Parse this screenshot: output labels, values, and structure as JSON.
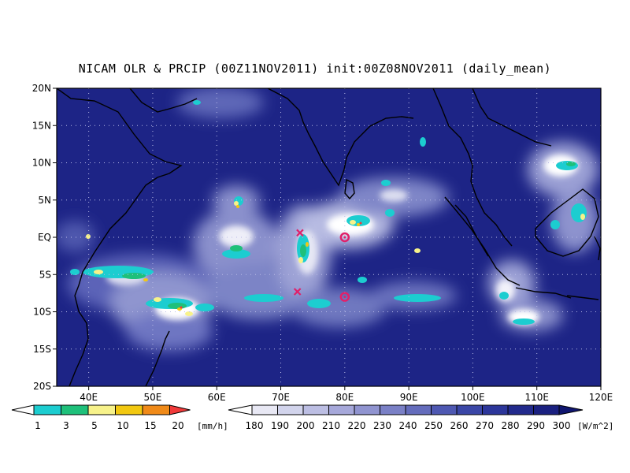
{
  "title": "NICAM OLR & PRCIP (00Z11NOV2011) init:00Z08NOV2011 (daily_mean)",
  "map": {
    "lon_range": [
      35,
      120
    ],
    "lat_range": [
      -20,
      20
    ],
    "lon_ticks": [
      "40E",
      "50E",
      "60E",
      "70E",
      "80E",
      "90E",
      "100E",
      "110E",
      "120E"
    ],
    "lat_ticks": [
      "20N",
      "15N",
      "10N",
      "5N",
      "EQ",
      "5S",
      "10S",
      "15S",
      "20S"
    ],
    "background_color": "#1d2486",
    "grid": "dotted",
    "markers": [
      {
        "type": "cross",
        "lon": 73.0,
        "lat": 0.6,
        "color": "#e0206a"
      },
      {
        "type": "cross",
        "lon": 72.6,
        "lat": -7.3,
        "color": "#e0206a"
      },
      {
        "type": "circle",
        "lon": 80.0,
        "lat": 0.0,
        "color": "#e0206a"
      },
      {
        "type": "circle",
        "lon": 80.0,
        "lat": -8.0,
        "color": "#e0206a"
      }
    ]
  },
  "precip_colorbar": {
    "labels": [
      "1",
      "3",
      "5",
      "10",
      "15",
      "20"
    ],
    "unit": "[mm/h]",
    "colors": [
      "#1ccdd0",
      "#1ec07a",
      "#f7f28a",
      "#f2c810",
      "#f08a18",
      "#f03a3a"
    ]
  },
  "olr_colorbar": {
    "labels": [
      "180",
      "190",
      "200",
      "210",
      "220",
      "230",
      "240",
      "250",
      "260",
      "270",
      "280",
      "290",
      "300"
    ],
    "unit": "[W/m^2]",
    "colors": [
      "#ffffff",
      "#e8e8f4",
      "#d2d4ec",
      "#bcbee3",
      "#a6a8da",
      "#9094d0",
      "#7a80c6",
      "#646cbc",
      "#4e58b2",
      "#3a46a6",
      "#2c369a",
      "#222a8c",
      "#1a2080",
      "#101670"
    ]
  }
}
